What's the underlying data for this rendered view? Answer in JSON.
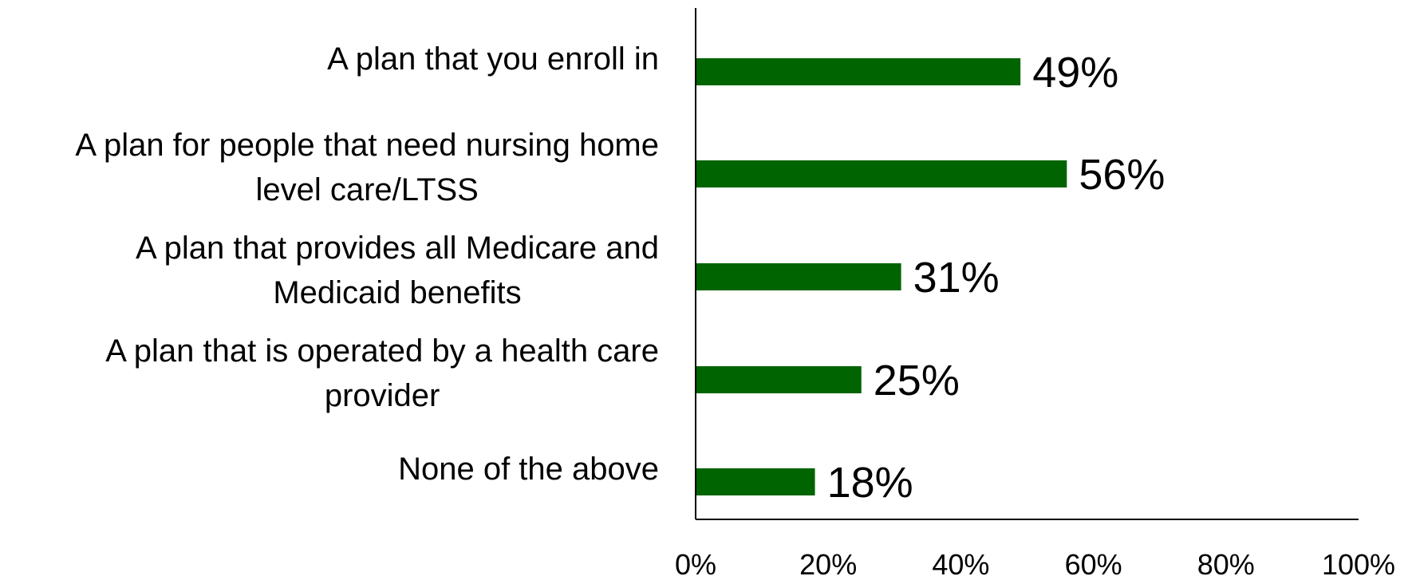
{
  "chart_data": {
    "type": "bar",
    "orientation": "horizontal",
    "categories": [
      [
        "A plan that you enroll in"
      ],
      [
        "A plan for people that need nursing home",
        "level care/LTSS"
      ],
      [
        "A plan that provides all Medicare and",
        "Medicaid benefits"
      ],
      [
        "A plan that is operated by a health care",
        "provider"
      ],
      [
        "None of the above"
      ]
    ],
    "values": [
      49,
      56,
      31,
      25,
      18
    ],
    "value_labels": [
      "49%",
      "56%",
      "31%",
      "25%",
      "18%"
    ],
    "xlim": [
      0,
      100
    ],
    "x_ticks": [
      0,
      20,
      40,
      60,
      80,
      100
    ],
    "x_tick_labels": [
      "0%",
      "20%",
      "40%",
      "60%",
      "80%",
      "100%"
    ],
    "grid": false,
    "legend": "none",
    "bar_color": "#006400"
  }
}
